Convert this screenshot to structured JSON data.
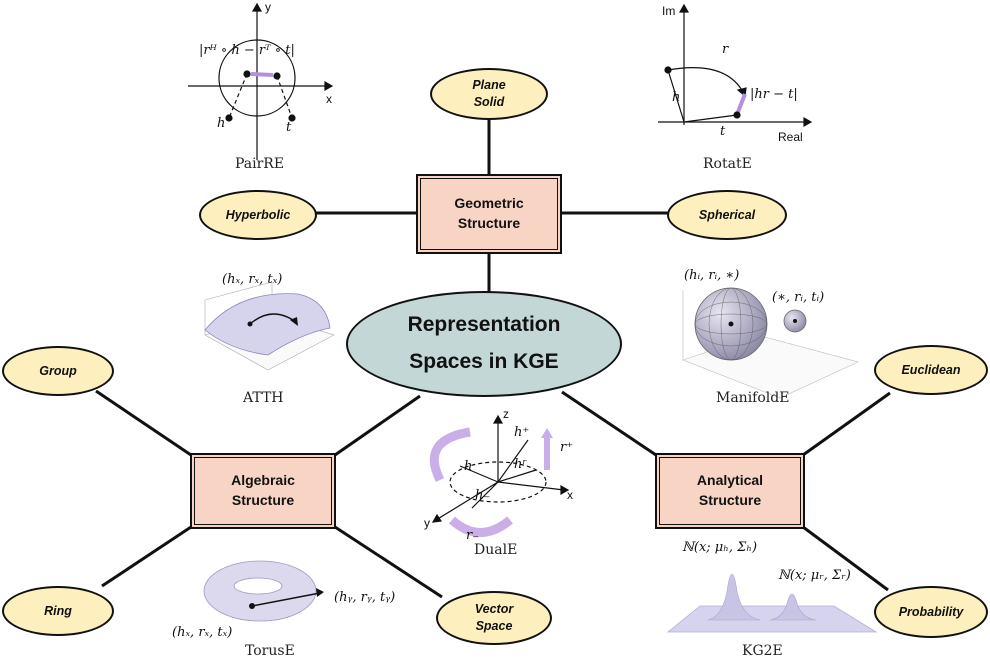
{
  "center": {
    "line1": "Representation",
    "line2": "Spaces in KGE"
  },
  "structures": {
    "geometric": {
      "line1": "Geometric",
      "line2": "Structure"
    },
    "algebraic": {
      "line1": "Algebraic",
      "line2": "Structure"
    },
    "analytical": {
      "line1": "Analytical",
      "line2": "Structure"
    }
  },
  "leaves": {
    "plane_solid": {
      "line1": "Plane",
      "line2": "Solid"
    },
    "hyperbolic": "Hyperbolic",
    "spherical": "Spherical",
    "group": "Group",
    "ring": "Ring",
    "vector_space": {
      "line1": "Vector",
      "line2": "Space"
    },
    "euclidean": "Euclidean",
    "probability": "Probability"
  },
  "models": {
    "pairre": {
      "name": "PairRE",
      "label_top": "|rᴴ ∘ h − rᵀ ∘ t|",
      "h": "h",
      "t": "t",
      "x": "x",
      "y": "y"
    },
    "rotate": {
      "name": "RotatE",
      "im": "Im",
      "real": "Real",
      "r": "r",
      "h": "h",
      "t": "t",
      "dist": "|hr − t|"
    },
    "atth": {
      "name": "ATTH",
      "triple": "(hₓ, rₓ, tₓ)"
    },
    "manifolde": {
      "name": "ManifoldE",
      "triple1": "(hᵢ, rᵢ, ∗)",
      "triple2": "(∗, rᵢ, tᵢ)"
    },
    "duale": {
      "name": "DualE",
      "z": "z",
      "x": "x",
      "y": "y",
      "h": "h",
      "h_plus": "h⁺",
      "h_minus": "h₋",
      "h_r": "hʳ",
      "r_plus": "r⁺",
      "r_minus": "r₋"
    },
    "toruse": {
      "name": "TorusE",
      "triple_h": "(hₓ, rₓ, tₓ)",
      "triple_t": "(hᵧ, rᵧ, tᵧ)"
    },
    "kg2e": {
      "name": "KG2E",
      "gauss_h": "ℕ(x; μₕ, Σₕ)",
      "gauss_r": "ℕ(x; μᵣ, Σᵣ)"
    }
  },
  "colors": {
    "box_fill": "#f8d4c4",
    "oval_fill": "#fdf0be",
    "center_fill": "#c2d7d6",
    "accent": "#b58ee0"
  }
}
